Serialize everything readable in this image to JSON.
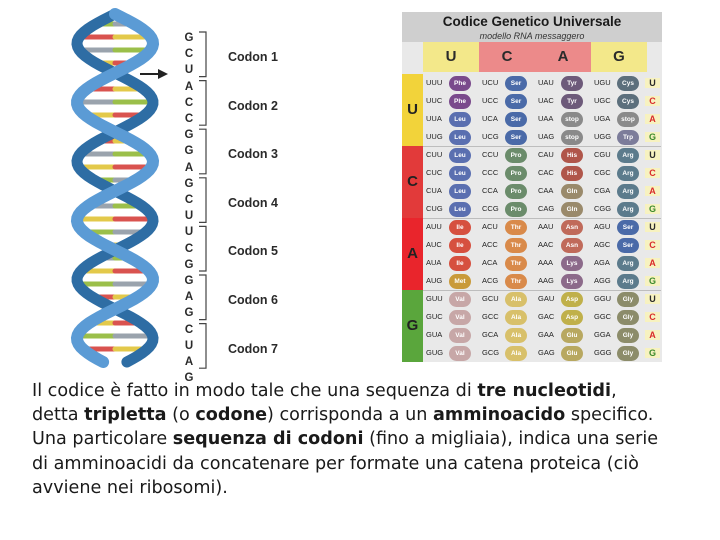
{
  "dna": {
    "bases": [
      "G",
      "C",
      "U",
      "A",
      "C",
      "C",
      "G",
      "G",
      "A",
      "G",
      "C",
      "U",
      "U",
      "C",
      "G",
      "G",
      "A",
      "G",
      "C",
      "U",
      "A",
      "G"
    ],
    "codons": [
      "Codon 1",
      "Codon 2",
      "Codon 3",
      "Codon 4",
      "Codon 5",
      "Codon 6",
      "Codon 7"
    ],
    "colors": {
      "backbone": "#5b9bd5",
      "backbone_dark": "#2e6da4",
      "rung_green": "#9bbf4a",
      "rung_red": "#d9534f",
      "rung_grey": "#9aa3ad",
      "rung_yellow": "#e3c94a"
    }
  },
  "table": {
    "title": "Codice Genetico Universale",
    "subtitle": "modello RNA messaggero",
    "columns": [
      "U",
      "C",
      "A",
      "G"
    ],
    "rows": [
      "U",
      "C",
      "A",
      "G"
    ],
    "third": [
      "U",
      "C",
      "A",
      "G"
    ],
    "colors": {
      "U": "#f2d33a",
      "C": "#e23a3a",
      "A": "#e9252c",
      "G": "#5aa63c",
      "header": "#f1eb9c",
      "title_bar": "#cfcfcf"
    },
    "cells": [
      [
        [
          "UUU",
          "Phe"
        ],
        [
          "UUC",
          "Phe"
        ],
        [
          "UUA",
          "Leu"
        ],
        [
          "UUG",
          "Leu"
        ]
      ],
      [
        [
          "UCU",
          "Ser"
        ],
        [
          "UCC",
          "Ser"
        ],
        [
          "UCA",
          "Ser"
        ],
        [
          "UCG",
          "Ser"
        ]
      ],
      [
        [
          "UAU",
          "Tyr"
        ],
        [
          "UAC",
          "Tyr"
        ],
        [
          "UAA",
          "stop"
        ],
        [
          "UAG",
          "stop"
        ]
      ],
      [
        [
          "UGU",
          "Cys"
        ],
        [
          "UGC",
          "Cys"
        ],
        [
          "UGA",
          "stop"
        ],
        [
          "UGG",
          "Trp"
        ]
      ],
      [
        [
          "CUU",
          "Leu"
        ],
        [
          "CUC",
          "Leu"
        ],
        [
          "CUA",
          "Leu"
        ],
        [
          "CUG",
          "Leu"
        ]
      ],
      [
        [
          "CCU",
          "Pro"
        ],
        [
          "CCC",
          "Pro"
        ],
        [
          "CCA",
          "Pro"
        ],
        [
          "CCG",
          "Pro"
        ]
      ],
      [
        [
          "CAU",
          "His"
        ],
        [
          "CAC",
          "His"
        ],
        [
          "CAA",
          "Gln"
        ],
        [
          "CAG",
          "Gln"
        ]
      ],
      [
        [
          "CGU",
          "Arg"
        ],
        [
          "CGC",
          "Arg"
        ],
        [
          "CGA",
          "Arg"
        ],
        [
          "CGG",
          "Arg"
        ]
      ],
      [
        [
          "AUU",
          "Ile"
        ],
        [
          "AUC",
          "Ile"
        ],
        [
          "AUA",
          "Ile"
        ],
        [
          "AUG",
          "Met"
        ]
      ],
      [
        [
          "ACU",
          "Thr"
        ],
        [
          "ACC",
          "Thr"
        ],
        [
          "ACA",
          "Thr"
        ],
        [
          "ACG",
          "Thr"
        ]
      ],
      [
        [
          "AAU",
          "Asn"
        ],
        [
          "AAC",
          "Asn"
        ],
        [
          "AAA",
          "Lys"
        ],
        [
          "AAG",
          "Lys"
        ]
      ],
      [
        [
          "AGU",
          "Ser"
        ],
        [
          "AGC",
          "Ser"
        ],
        [
          "AGA",
          "Arg"
        ],
        [
          "AGG",
          "Arg"
        ]
      ],
      [
        [
          "GUU",
          "Val"
        ],
        [
          "GUC",
          "Val"
        ],
        [
          "GUA",
          "Val"
        ],
        [
          "GUG",
          "Val"
        ]
      ],
      [
        [
          "GCU",
          "Ala"
        ],
        [
          "GCC",
          "Ala"
        ],
        [
          "GCA",
          "Ala"
        ],
        [
          "GCG",
          "Ala"
        ]
      ],
      [
        [
          "GAU",
          "Asp"
        ],
        [
          "GAC",
          "Asp"
        ],
        [
          "GAA",
          "Glu"
        ],
        [
          "GAG",
          "Glu"
        ]
      ],
      [
        [
          "GGU",
          "Gly"
        ],
        [
          "GGC",
          "Gly"
        ],
        [
          "GGA",
          "Gly"
        ],
        [
          "GGG",
          "Gly"
        ]
      ]
    ],
    "aa_colors": {
      "Phe": "#7a4a8c",
      "Leu": "#5a6fb0",
      "Ser": "#4a6aa8",
      "Tyr": "#6d5a7a",
      "stop": "#8a8a8a",
      "Cys": "#5c6f7c",
      "Trp": "#7c7c9a",
      "Pro": "#6b8c6b",
      "His": "#b0564a",
      "Gln": "#9a8a6b",
      "Arg": "#5c7b8c",
      "Ile": "#d6503f",
      "Thr": "#d98a4a",
      "Asn": "#c06a5a",
      "Lys": "#8c6a8a",
      "Met": "#c99a3a",
      "Val": "#c7a7a7",
      "Ala": "#d8c06a",
      "Asp": "#c0b04a",
      "Glu": "#b8a860",
      "Gly": "#8c8c6a"
    }
  },
  "caption": {
    "line1_a": "Il codice è fatto in modo tale che una sequenza di ",
    "line1_b": "tre nucleotidi",
    "line1_c": ",",
    "line2_a": "detta ",
    "line2_b": "tripletta",
    "line2_c": " (o ",
    "line2_d": "codone",
    "line2_e": ") corrisponda a un ",
    "line2_f": "amminoacido",
    "line2_g": " specifico.",
    "line3_a": "Una particolare ",
    "line3_b": "sequenza di codoni",
    "line3_c": " (fino a migliaia), indica una serie",
    "line4": "di amminoacidi da concatenare per formate una catena proteica (ciò",
    "line5": "avviene nei ribosomi)."
  }
}
